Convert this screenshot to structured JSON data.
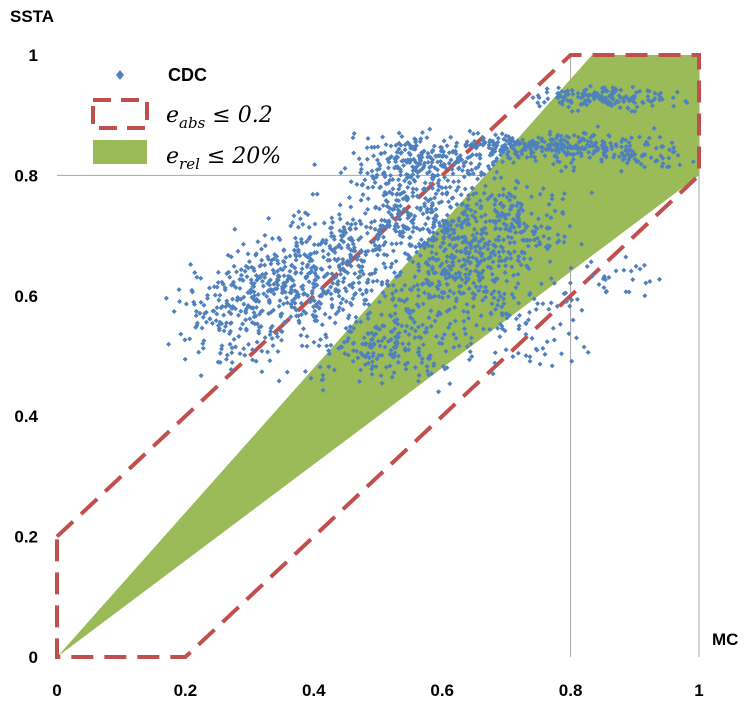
{
  "chart_data": {
    "type": "scatter",
    "xlabel": "MC",
    "ylabel": "SSTA",
    "xlim": [
      0,
      1
    ],
    "ylim": [
      0,
      1
    ],
    "x_ticks": [
      "0",
      "0.2",
      "0.4",
      "0.6",
      "0.8",
      "1"
    ],
    "y_ticks": [
      "0",
      "0.2",
      "0.4",
      "0.6",
      "0.8",
      "1"
    ],
    "x_tick_values": [
      0,
      0.2,
      0.4,
      0.6,
      0.8,
      1
    ],
    "y_tick_values": [
      0,
      0.2,
      0.4,
      0.6,
      0.8,
      1
    ],
    "gridlines": {
      "x": [
        0.8,
        1
      ],
      "y": [
        0.8
      ]
    },
    "legend_placement": "top-left",
    "legend": {
      "cdc": "CDC",
      "abs": "e_abs ≤ 0.2",
      "rel": "e_rel ≤ 20%"
    },
    "abs_error_bound": 0.2,
    "rel_error_bound": 0.2,
    "colors": {
      "points": "#4f81bd",
      "abs_band": "#c0504d",
      "rel_band": "#9bbb59",
      "grid": "#a6a6a6"
    },
    "series": [
      {
        "name": "CDC",
        "clusters": [
          {
            "cx": 0.28,
            "cy": 0.56,
            "sx": 0.05,
            "sy": 0.04,
            "n": 180
          },
          {
            "cx": 0.35,
            "cy": 0.62,
            "sx": 0.05,
            "sy": 0.035,
            "n": 200
          },
          {
            "cx": 0.45,
            "cy": 0.65,
            "sx": 0.06,
            "sy": 0.05,
            "n": 300
          },
          {
            "cx": 0.52,
            "cy": 0.52,
            "sx": 0.06,
            "sy": 0.03,
            "n": 200
          },
          {
            "cx": 0.55,
            "cy": 0.75,
            "sx": 0.06,
            "sy": 0.04,
            "n": 260
          },
          {
            "cx": 0.58,
            "cy": 0.83,
            "sx": 0.06,
            "sy": 0.02,
            "n": 220
          },
          {
            "cx": 0.62,
            "cy": 0.65,
            "sx": 0.05,
            "sy": 0.05,
            "n": 300
          },
          {
            "cx": 0.7,
            "cy": 0.72,
            "sx": 0.05,
            "sy": 0.04,
            "n": 220
          },
          {
            "cx": 0.74,
            "cy": 0.85,
            "sx": 0.05,
            "sy": 0.01,
            "n": 180
          },
          {
            "cx": 0.86,
            "cy": 0.93,
            "sx": 0.05,
            "sy": 0.01,
            "n": 150
          },
          {
            "cx": 0.86,
            "cy": 0.84,
            "sx": 0.06,
            "sy": 0.015,
            "n": 150
          },
          {
            "cx": 0.72,
            "cy": 0.56,
            "sx": 0.05,
            "sy": 0.04,
            "n": 80
          },
          {
            "cx": 0.86,
            "cy": 0.63,
            "sx": 0.04,
            "sy": 0.02,
            "n": 30
          }
        ]
      }
    ]
  }
}
